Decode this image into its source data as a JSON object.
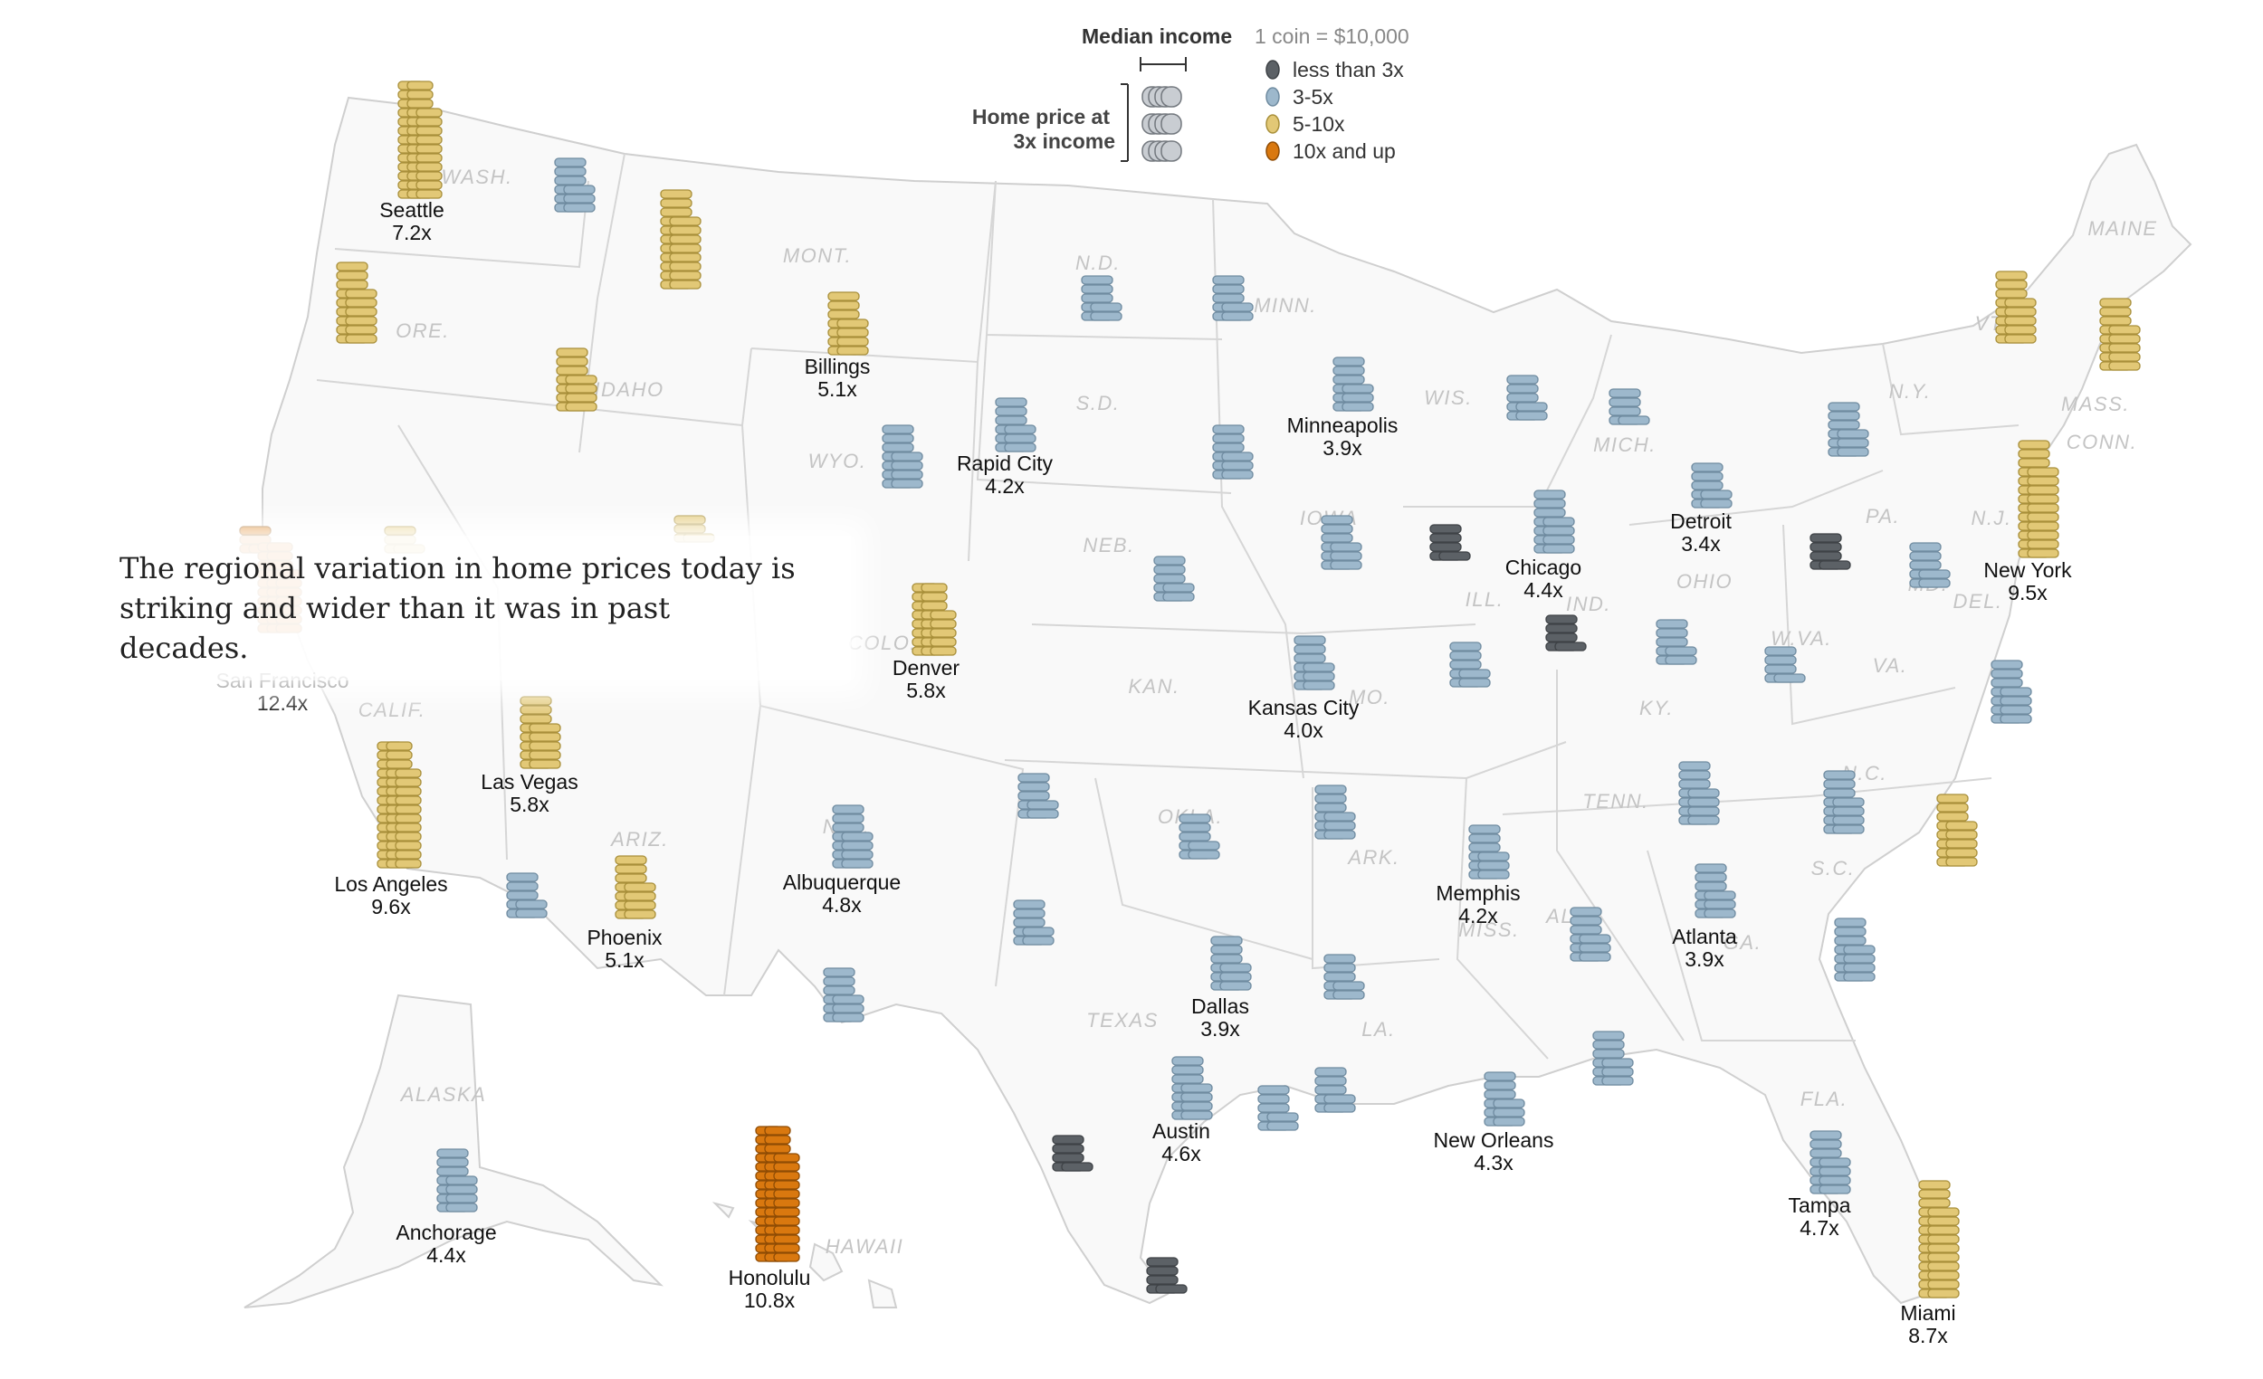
{
  "legend": {
    "title": "Median income",
    "unit_note": "1 coin = $10,000",
    "home_price_label_line1": "Home price at",
    "home_price_label_line2": "3x income",
    "categories": [
      {
        "label": "less than 3x",
        "color": "#5c6166"
      },
      {
        "label": "3-5x",
        "color": "#9db8cc"
      },
      {
        "label": "5-10x",
        "color": "#e2c876"
      },
      {
        "label": "10x and up",
        "color": "#d9780f"
      }
    ]
  },
  "state_labels": [
    "WASH.",
    "ORE.",
    "IDAHO",
    "MONT.",
    "WYO.",
    "N.D.",
    "S.D.",
    "MINN.",
    "WIS.",
    "MICH.",
    "N.Y.",
    "MAINE",
    "VT.",
    "MASS.",
    "CONN.",
    "PA.",
    "OHIO",
    "IND.",
    "ILL.",
    "IOWA",
    "NEB.",
    "KAN.",
    "MO.",
    "KY.",
    "W.VA.",
    "VA.",
    "MD.",
    "DEL.",
    "N.C.",
    "S.C.",
    "TENN.",
    "ARK.",
    "OKLA.",
    "TEXAS",
    "LA.",
    "MISS.",
    "ALA.",
    "GA.",
    "FLA.",
    "ALASKA",
    "HAWAII",
    "CALIF.",
    "ARIZ.",
    "N.M.",
    "COLO.",
    "N.J."
  ],
  "cities": [
    {
      "name": "Seattle",
      "ratio": "7.2x",
      "category": 2
    },
    {
      "name": "San Francisco",
      "ratio": "12.4x",
      "category": 3
    },
    {
      "name": "Los Angeles",
      "ratio": "9.6x",
      "category": 2
    },
    {
      "name": "Las Vegas",
      "ratio": "5.8x",
      "category": 2
    },
    {
      "name": "Phoenix",
      "ratio": "5.1x",
      "category": 2
    },
    {
      "name": "Billings",
      "ratio": "5.1x",
      "category": 2
    },
    {
      "name": "Rapid City",
      "ratio": "4.2x",
      "category": 1
    },
    {
      "name": "Denver",
      "ratio": "5.8x",
      "category": 2
    },
    {
      "name": "Albuquerque",
      "ratio": "4.8x",
      "category": 1
    },
    {
      "name": "Minneapolis",
      "ratio": "3.9x",
      "category": 1
    },
    {
      "name": "Kansas City",
      "ratio": "4.0x",
      "category": 1
    },
    {
      "name": "Dallas",
      "ratio": "3.9x",
      "category": 1
    },
    {
      "name": "Austin",
      "ratio": "4.6x",
      "category": 1
    },
    {
      "name": "Chicago",
      "ratio": "4.4x",
      "category": 1
    },
    {
      "name": "Detroit",
      "ratio": "3.4x",
      "category": 1
    },
    {
      "name": "Memphis",
      "ratio": "4.2x",
      "category": 1
    },
    {
      "name": "New Orleans",
      "ratio": "4.3x",
      "category": 1
    },
    {
      "name": "Atlanta",
      "ratio": "3.9x",
      "category": 1
    },
    {
      "name": "Tampa",
      "ratio": "4.7x",
      "category": 1
    },
    {
      "name": "Miami",
      "ratio": "8.7x",
      "category": 2
    },
    {
      "name": "New York",
      "ratio": "9.5x",
      "category": 2
    },
    {
      "name": "Anchorage",
      "ratio": "4.4x",
      "category": 1
    },
    {
      "name": "Honolulu",
      "ratio": "10.8x",
      "category": 3
    }
  ],
  "caption": "The regional variation in home prices today is striking and wider than it was in past decades."
}
